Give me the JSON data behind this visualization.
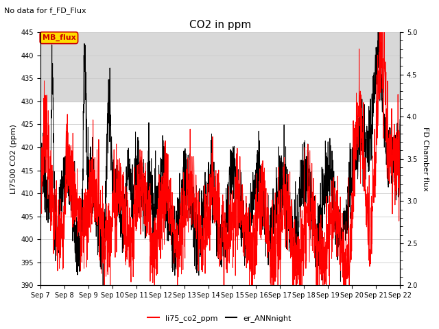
{
  "title": "CO2 in ppm",
  "subtitle": "No data for f_FD_Flux",
  "ylabel_left": "LI7500 CO2 (ppm)",
  "ylabel_right": "FD Chamber flux",
  "ylim_left": [
    390,
    445
  ],
  "ylim_right": [
    2.0,
    5.0
  ],
  "yticks_left": [
    390,
    395,
    400,
    405,
    410,
    415,
    420,
    425,
    430,
    435,
    440,
    445
  ],
  "yticks_right": [
    2.0,
    2.5,
    3.0,
    3.5,
    4.0,
    4.5,
    5.0
  ],
  "xtick_labels": [
    "Sep 7",
    "Sep 8",
    "Sep 9",
    "Sep 10",
    "Sep 11",
    "Sep 12",
    "Sep 13",
    "Sep 14",
    "Sep 15",
    "Sep 16",
    "Sep 17",
    "Sep 18",
    "Sep 19",
    "Sep 20",
    "Sep 21",
    "Sep 22"
  ],
  "legend_entries": [
    "li75_co2_ppm",
    "er_ANNnight"
  ],
  "MB_flux_box_facecolor": "#ffdd00",
  "MB_flux_text_color": "#cc0000",
  "MB_flux_edge_color": "#cc0000",
  "background_band": [
    430,
    445
  ],
  "background_band_color": "#d8d8d8",
  "grid_color": "#cccccc",
  "n_days": 15,
  "figsize": [
    6.4,
    4.8
  ],
  "dpi": 100
}
